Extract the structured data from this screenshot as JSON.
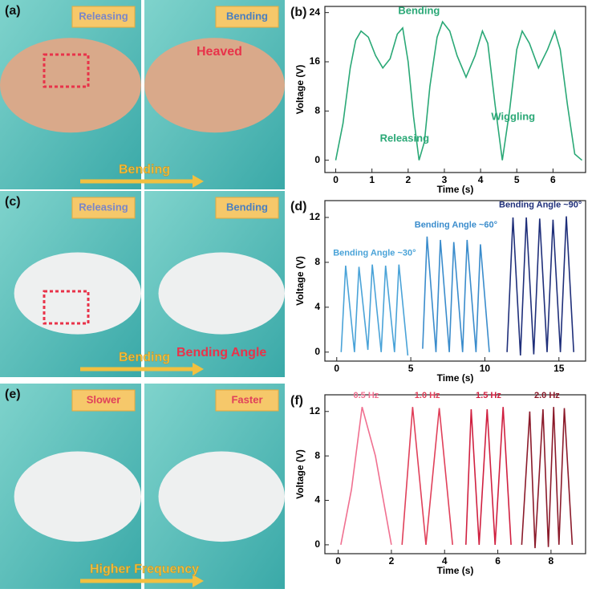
{
  "photo_panels": [
    {
      "label": "(a)",
      "left_tag": "Releasing",
      "right_tag": "Bending",
      "callout": "Heaved",
      "arrow_text": "Bending"
    },
    {
      "label": "(c)",
      "left_tag": "Releasing",
      "right_tag": "Bending",
      "callout": "Bending Angle",
      "arrow_text": "Bending"
    },
    {
      "label": "(e)",
      "left_tag": "Slower",
      "right_tag": "Faster",
      "arrow_text": "Higher Frequency"
    }
  ],
  "chart_data": [
    {
      "type": "line",
      "label": "(b)",
      "x_label": "Time (s)",
      "y_label": "Voltage (V)",
      "xlim": [
        -0.3,
        6.9
      ],
      "ylim": [
        -2,
        25
      ],
      "xticks": [
        0,
        1,
        2,
        3,
        4,
        5,
        6
      ],
      "yticks": [
        0,
        8,
        16,
        24
      ],
      "annotations": [
        "Bending",
        "Releasing",
        "Wiggling"
      ],
      "series": [
        {
          "color": "#2aa876",
          "x": [
            0,
            0.2,
            0.4,
            0.55,
            0.7,
            0.9,
            1.1,
            1.3,
            1.5,
            1.7,
            1.85,
            2.0,
            2.15,
            2.3,
            2.45,
            2.6,
            2.8,
            2.95,
            3.15,
            3.35,
            3.6,
            3.85,
            4.05,
            4.2,
            4.4,
            4.6,
            4.8,
            5.0,
            5.15,
            5.35,
            5.6,
            5.85,
            6.05,
            6.2,
            6.4,
            6.6,
            6.8
          ],
          "values": [
            0,
            6,
            15,
            19.5,
            21,
            20,
            17,
            15,
            16.5,
            20.5,
            21.5,
            16,
            7,
            0,
            3,
            12,
            20,
            22.5,
            21,
            17,
            13.5,
            17,
            21,
            19,
            9,
            0,
            8,
            18,
            21,
            19,
            15,
            18,
            21,
            18,
            9,
            1,
            0
          ]
        }
      ]
    },
    {
      "type": "line",
      "label": "(d)",
      "x_label": "Time (s)",
      "y_label": "Voltage (V)",
      "xlim": [
        -0.8,
        16.8
      ],
      "ylim": [
        -0.8,
        13.5
      ],
      "xticks": [
        0,
        5,
        10,
        15
      ],
      "yticks": [
        0,
        4,
        8,
        12
      ],
      "series": [
        {
          "name": "Bending Angle ~30°",
          "color": "#4aa3d8",
          "x": [
            0.3,
            0.6,
            1.2,
            1.5,
            2.1,
            2.4,
            3.0,
            3.3,
            3.9,
            4.2,
            4.8
          ],
          "values": [
            0,
            7.7,
            0,
            7.6,
            0.2,
            7.8,
            0,
            7.7,
            0,
            7.8,
            -0.3
          ]
        },
        {
          "name": "Bending Angle ~60°",
          "color": "#3a8ccc",
          "x": [
            5.8,
            6.1,
            6.7,
            7.0,
            7.6,
            7.9,
            8.5,
            8.8,
            9.4,
            9.7,
            10.3
          ],
          "values": [
            0.3,
            10.3,
            0,
            10,
            0,
            9.8,
            0,
            10,
            0,
            9.6,
            0
          ]
        },
        {
          "name": "Bending Angle ~90°",
          "color": "#1f2f7a",
          "x": [
            11.5,
            11.9,
            12.4,
            12.8,
            13.3,
            13.7,
            14.2,
            14.6,
            15.1,
            15.5,
            16.0
          ],
          "values": [
            0,
            12,
            -0.3,
            12,
            -0.2,
            11.9,
            0,
            11.8,
            0,
            12.1,
            0
          ]
        }
      ]
    },
    {
      "type": "line",
      "label": "(f)",
      "x_label": "Time (s)",
      "y_label": "Voltage (V)",
      "xlim": [
        -0.5,
        9.3
      ],
      "ylim": [
        -0.8,
        13.5
      ],
      "xticks": [
        0,
        2,
        4,
        6,
        8
      ],
      "yticks": [
        0,
        4,
        8,
        12
      ],
      "series": [
        {
          "name": "0.5 Hz",
          "color": "#f07090",
          "x": [
            0.1,
            0.5,
            0.9,
            1.4,
            2.0
          ],
          "values": [
            0,
            5,
            12.4,
            8,
            0
          ]
        },
        {
          "name": "1.0 Hz",
          "color": "#e0405a",
          "x": [
            2.4,
            2.8,
            3.3,
            3.8,
            4.3
          ],
          "values": [
            0,
            12.4,
            0,
            12.3,
            0
          ]
        },
        {
          "name": "1.5 Hz",
          "color": "#d02040",
          "x": [
            4.8,
            5.0,
            5.3,
            5.6,
            5.9,
            6.2,
            6.5
          ],
          "values": [
            0,
            12.2,
            0,
            12.2,
            0,
            12.4,
            0
          ]
        },
        {
          "name": "2.0 Hz",
          "color": "#8b1a2a",
          "x": [
            6.9,
            7.2,
            7.4,
            7.7,
            7.9,
            8.1,
            8.3,
            8.5,
            8.8
          ],
          "values": [
            0,
            12,
            -0.3,
            12.2,
            -0.2,
            12.4,
            0,
            12.3,
            0
          ]
        }
      ]
    }
  ]
}
